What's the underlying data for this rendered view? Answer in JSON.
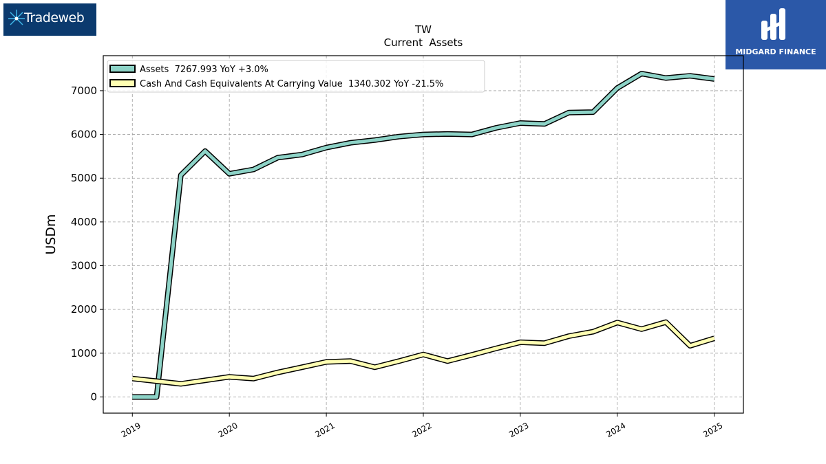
{
  "logos": {
    "left_text": "Tradeweb",
    "right_text": "MIDGARD FINANCE"
  },
  "chart_data": {
    "type": "line",
    "title": "TW",
    "subtitle": "Current  Assets",
    "xlabel": "",
    "ylabel": "USDm",
    "xlim": [
      2018.7,
      2025.3
    ],
    "ylim": [
      -370,
      7800
    ],
    "x_ticks": [
      "2019",
      "2020",
      "2021",
      "2022",
      "2023",
      "2024",
      "2025"
    ],
    "y_ticks": [
      0,
      1000,
      2000,
      3000,
      4000,
      5000,
      6000,
      7000
    ],
    "grid": true,
    "legend_position": "top-left",
    "x": [
      2019.0,
      2019.25,
      2019.5,
      2019.75,
      2020.0,
      2020.25,
      2020.5,
      2020.75,
      2021.0,
      2021.25,
      2021.5,
      2021.75,
      2022.0,
      2022.25,
      2022.5,
      2022.75,
      2023.0,
      2023.25,
      2023.5,
      2023.75,
      2024.0,
      2024.25,
      2024.5,
      2024.75,
      2025.0
    ],
    "series": [
      {
        "name": "Assets  7267.993 YoY +3.0%",
        "color": "#8dd3c7",
        "values": [
          0,
          0,
          5070,
          5620,
          5100,
          5200,
          5470,
          5540,
          5700,
          5810,
          5870,
          5950,
          6000,
          6010,
          6000,
          6150,
          6260,
          6240,
          6500,
          6510,
          7060,
          7390,
          7290,
          7340,
          7268
        ]
      },
      {
        "name": "Cash And Cash Equivalents At Carrying Value  1340.302 YoY -21.5%",
        "color": "#ffffb3",
        "values": [
          420,
          360,
          300,
          380,
          460,
          420,
          560,
          680,
          800,
          820,
          680,
          820,
          970,
          820,
          960,
          1110,
          1250,
          1230,
          1390,
          1490,
          1700,
          1550,
          1710,
          1170,
          1340
        ]
      }
    ]
  }
}
